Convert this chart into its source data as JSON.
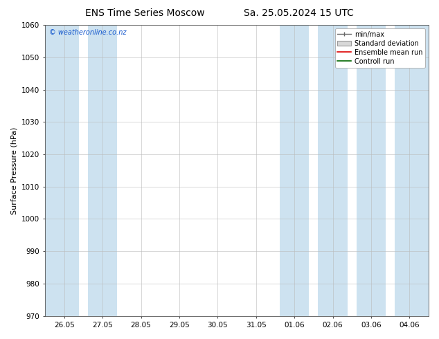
{
  "title_left": "ENS Time Series Moscow",
  "title_right": "Sa. 25.05.2024 15 UTC",
  "ylabel": "Surface Pressure (hPa)",
  "ylim": [
    970,
    1060
  ],
  "yticks": [
    970,
    980,
    990,
    1000,
    1010,
    1020,
    1030,
    1040,
    1050,
    1060
  ],
  "xtick_labels": [
    "26.05",
    "27.05",
    "28.05",
    "29.05",
    "30.05",
    "31.05",
    "01.06",
    "02.06",
    "03.06",
    "04.06"
  ],
  "watermark": "© weatheronline.co.nz",
  "band_color": "#cde2f0",
  "legend_items": [
    "min/max",
    "Standard deviation",
    "Ensemble mean run",
    "Controll run"
  ],
  "legend_line_colors": [
    "#666666",
    "#aaaaaa",
    "#dd0000",
    "#006600"
  ],
  "background_color": "#ffffff",
  "fig_width": 6.34,
  "fig_height": 4.9,
  "dpi": 100,
  "title_fontsize": 10,
  "axis_fontsize": 8,
  "tick_fontsize": 7.5
}
